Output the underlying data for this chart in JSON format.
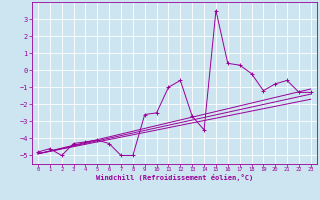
{
  "xlabel": "Windchill (Refroidissement éolien,°C)",
  "bg_color": "#cce5f0",
  "grid_color": "#ffffff",
  "line_color": "#990099",
  "marker_color": "#990099",
  "xlim": [
    -0.5,
    23.5
  ],
  "ylim": [
    -5.5,
    4.0
  ],
  "yticks": [
    -5,
    -4,
    -3,
    -2,
    -1,
    0,
    1,
    2,
    3
  ],
  "xticks": [
    0,
    1,
    2,
    3,
    4,
    5,
    6,
    7,
    8,
    9,
    10,
    11,
    12,
    13,
    14,
    15,
    16,
    17,
    18,
    19,
    20,
    21,
    22,
    23
  ],
  "main_series_x": [
    0,
    1,
    2,
    3,
    4,
    5,
    6,
    7,
    8,
    9,
    10,
    11,
    12,
    13,
    14,
    15,
    16,
    17,
    18,
    19,
    20,
    21,
    22,
    23
  ],
  "main_series_y": [
    -4.8,
    -4.6,
    -5.0,
    -4.3,
    -4.2,
    -4.1,
    -4.3,
    -5.0,
    -5.0,
    -2.6,
    -2.5,
    -1.0,
    -0.6,
    -2.7,
    -3.5,
    3.5,
    0.4,
    0.3,
    -0.2,
    -1.2,
    -0.8,
    -0.6,
    -1.3,
    -1.3
  ],
  "line1_x": [
    0,
    23
  ],
  "line1_y": [
    -4.9,
    -1.1
  ],
  "line2_x": [
    0,
    23
  ],
  "line2_y": [
    -4.9,
    -1.4
  ],
  "line3_x": [
    0,
    23
  ],
  "line3_y": [
    -4.9,
    -1.7
  ]
}
